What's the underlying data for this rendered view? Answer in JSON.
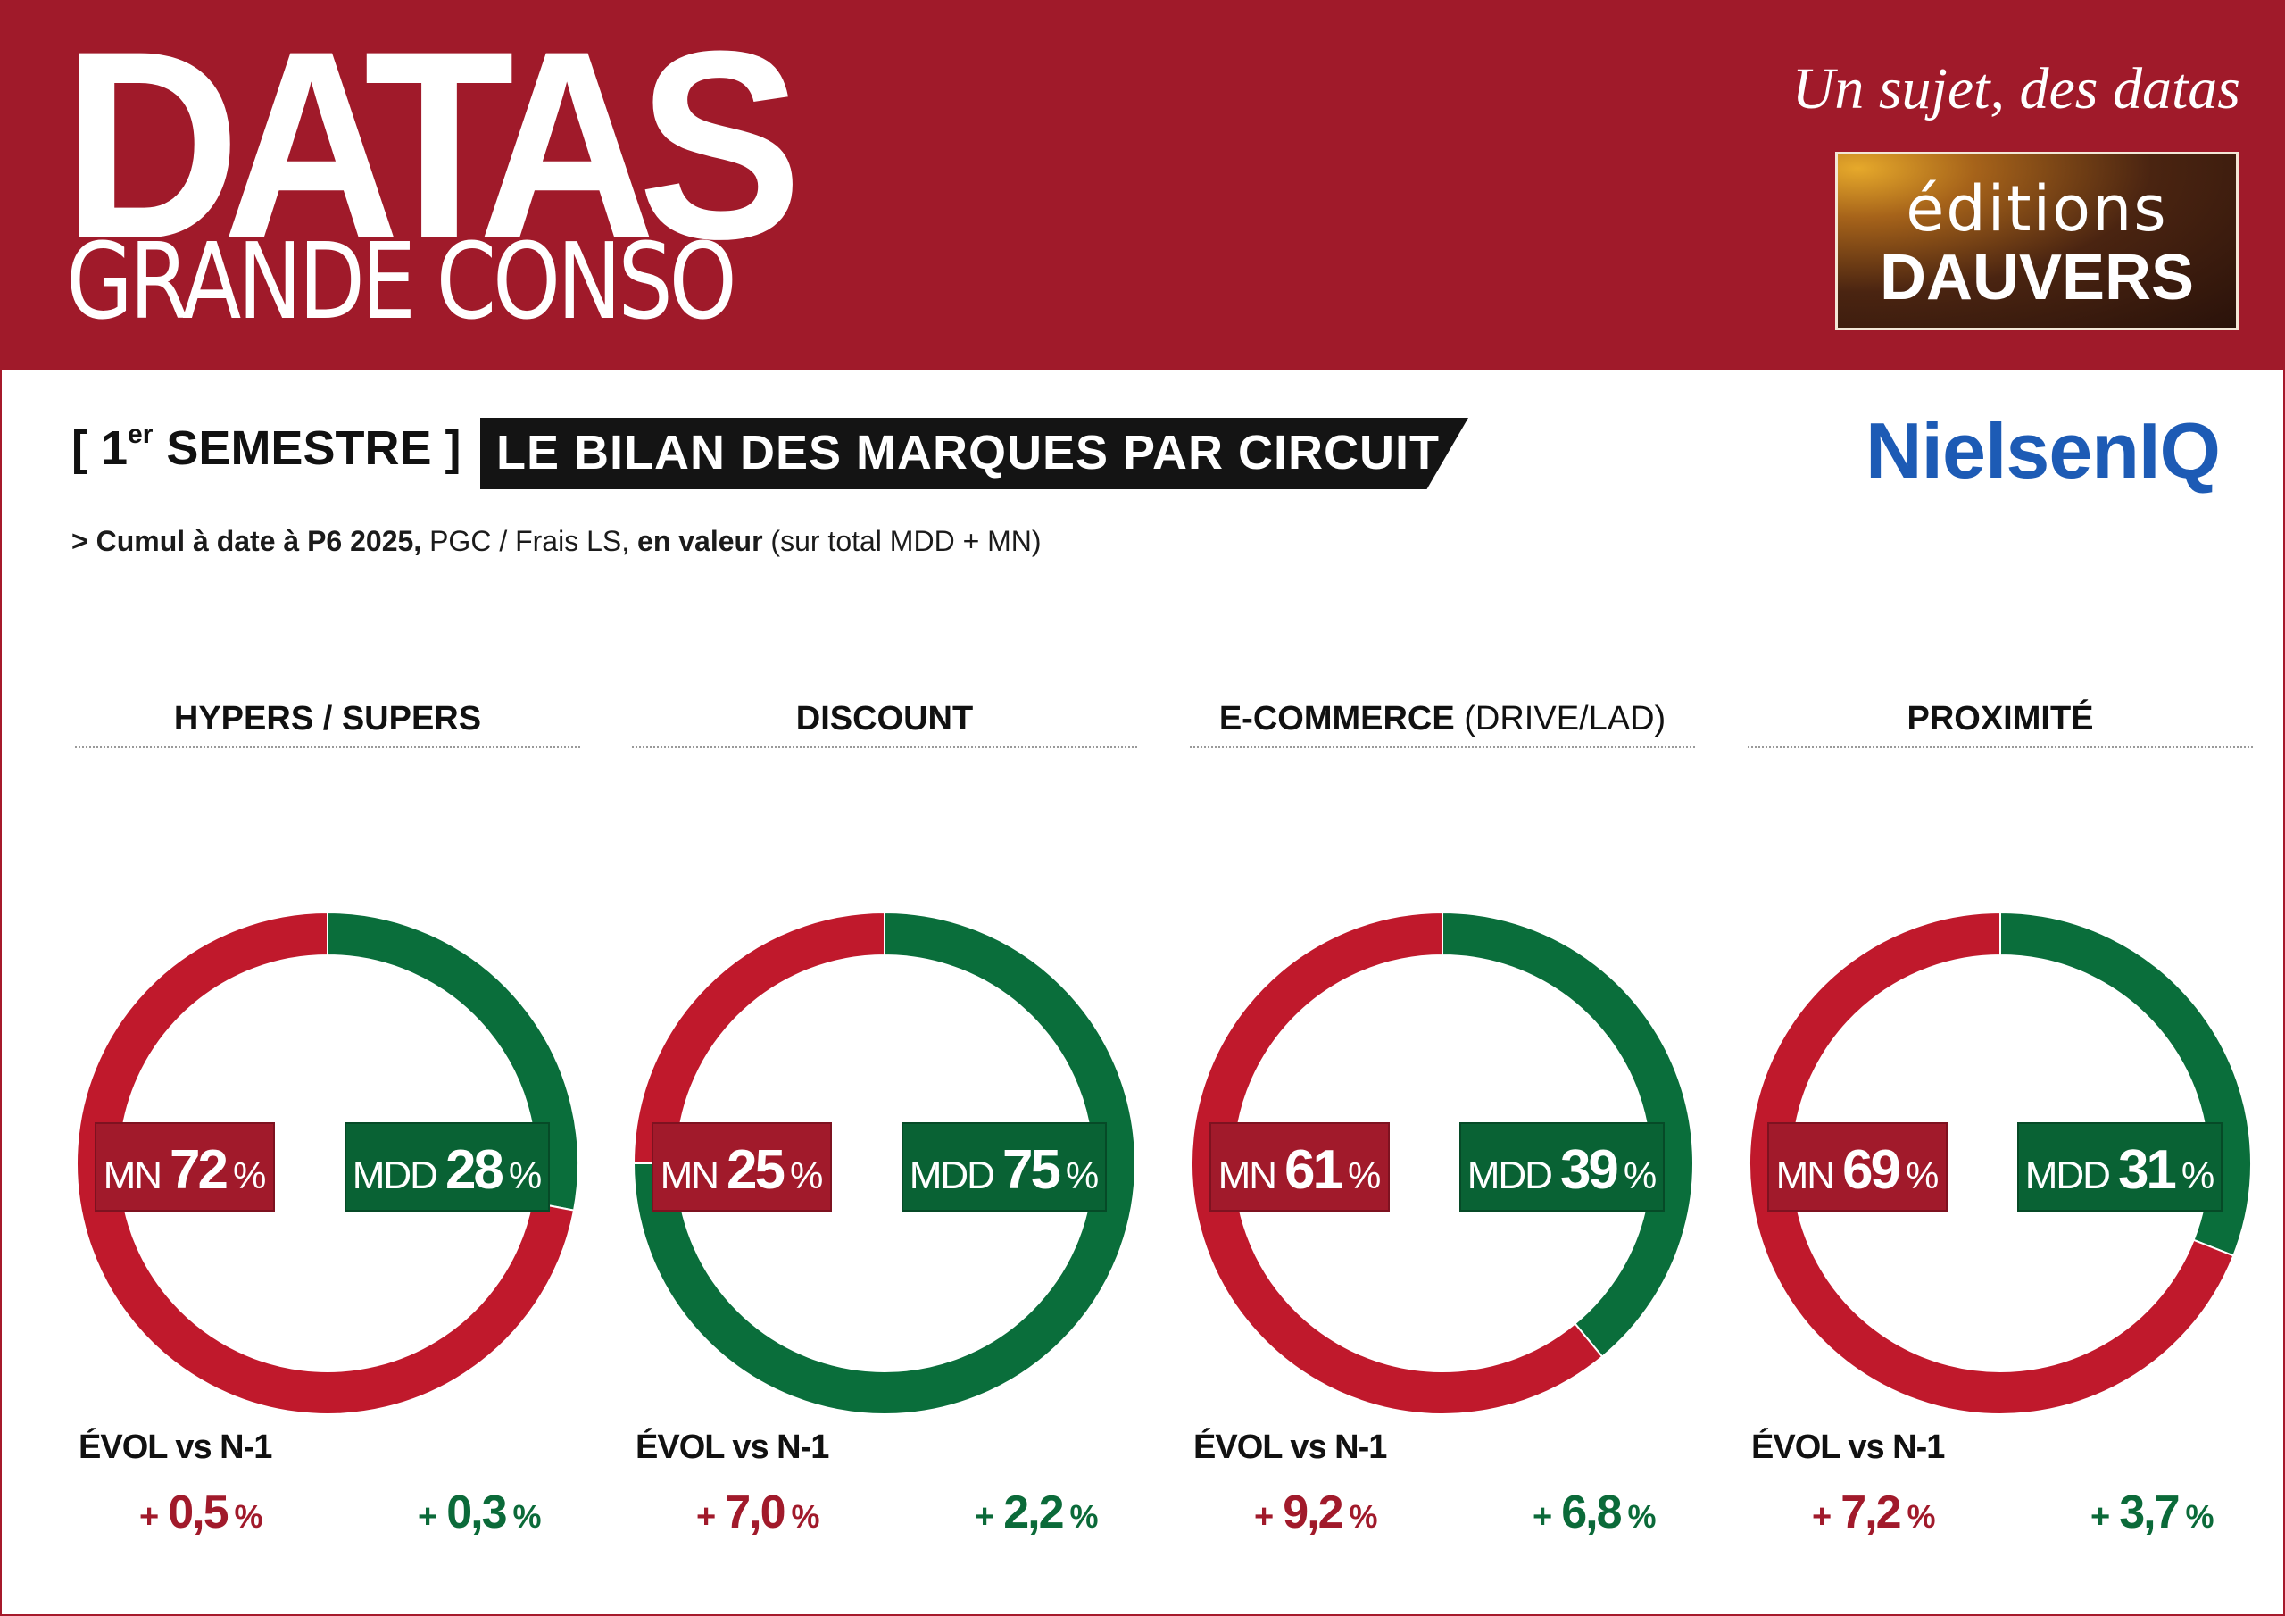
{
  "header": {
    "logo_main": "DATAS",
    "logo_sub": "GRANDE CONSO",
    "tagline": "Un sujet, des datas",
    "publisher_line1": "éditions",
    "publisher_line2": "DAUVERS"
  },
  "period_label": "SEMESTRE ]",
  "period_prefix": "[ 1",
  "period_sup": "er",
  "title": "LE BILAN DES MARQUES PAR CIRCUIT",
  "source": "NielsenIQ",
  "subtitle": {
    "part1": "> Cumul à date à P6 2025,",
    "part2": " PGC / Frais LS, ",
    "part3": "en valeur",
    "part4": " (sur total MDD + MN)"
  },
  "colors": {
    "mn": "#c0192c",
    "mdd": "#0a6e3b",
    "banner": "#a01a2a"
  },
  "labels": {
    "mn": "MN",
    "mdd": "MDD",
    "percent": "%",
    "evol": "ÉVOL vs N-1",
    "plus": "+"
  },
  "chart_data": [
    {
      "type": "pie",
      "title": "HYPERS / SUPERS",
      "title_suffix": "",
      "categories": [
        "MN",
        "MDD"
      ],
      "values": [
        72,
        28
      ],
      "evol": [
        "0,5",
        "0,3"
      ]
    },
    {
      "type": "pie",
      "title": "DISCOUNT",
      "title_suffix": "",
      "categories": [
        "MN",
        "MDD"
      ],
      "values": [
        25,
        75
      ],
      "evol": [
        "7,0",
        "2,2"
      ]
    },
    {
      "type": "pie",
      "title": "E-COMMERCE",
      "title_suffix": " (DRIVE/LAD)",
      "categories": [
        "MN",
        "MDD"
      ],
      "values": [
        61,
        39
      ],
      "evol": [
        "9,2",
        "6,8"
      ]
    },
    {
      "type": "pie",
      "title": "PROXIMITÉ",
      "title_suffix": "",
      "categories": [
        "MN",
        "MDD"
      ],
      "values": [
        69,
        31
      ],
      "evol": [
        "7,2",
        "3,7"
      ]
    }
  ]
}
